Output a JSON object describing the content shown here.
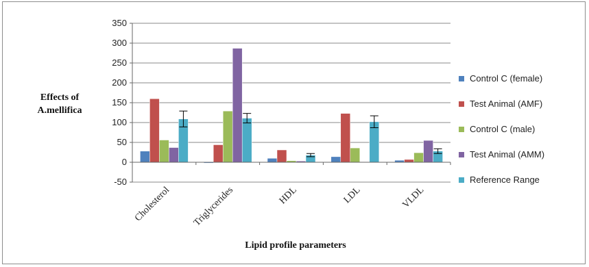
{
  "chart_data": {
    "type": "bar",
    "ylabel": "Effects of A.mellifica",
    "ylabel_lines": [
      "Effects of",
      "A.mellifica"
    ],
    "xlabel": "Lipid profile parameters",
    "categories": [
      "Cholesterol",
      "Triglycerides",
      "HDL",
      "LDL",
      "VLDL"
    ],
    "ylim": [
      -50,
      350
    ],
    "yticks": [
      -50,
      0,
      50,
      100,
      150,
      200,
      250,
      300,
      350
    ],
    "grid": true,
    "legend_position": "right",
    "series": [
      {
        "name": "Control C (female)",
        "color": "#4f81bd",
        "values": [
          28,
          -2,
          10,
          14,
          5
        ],
        "errors": [
          0,
          0,
          0,
          0,
          0
        ]
      },
      {
        "name": "Test Animal (AMF)",
        "color": "#c0504d",
        "values": [
          160,
          44,
          31,
          123,
          7
        ],
        "errors": [
          0,
          0,
          0,
          0,
          0
        ]
      },
      {
        "name": "Control C (male)",
        "color": "#9bbb59",
        "values": [
          56,
          129,
          4,
          36,
          24
        ],
        "errors": [
          0,
          0,
          0,
          0,
          0
        ]
      },
      {
        "name": "Test Animal (AMM)",
        "color": "#8064a2",
        "values": [
          37,
          287,
          3,
          1,
          55
        ],
        "errors": [
          0,
          0,
          0,
          0,
          0
        ]
      },
      {
        "name": "Reference Range",
        "color": "#4bacc6",
        "values": [
          109,
          111,
          18,
          102,
          28
        ],
        "errors": [
          20,
          12,
          4,
          15,
          6
        ]
      }
    ]
  }
}
